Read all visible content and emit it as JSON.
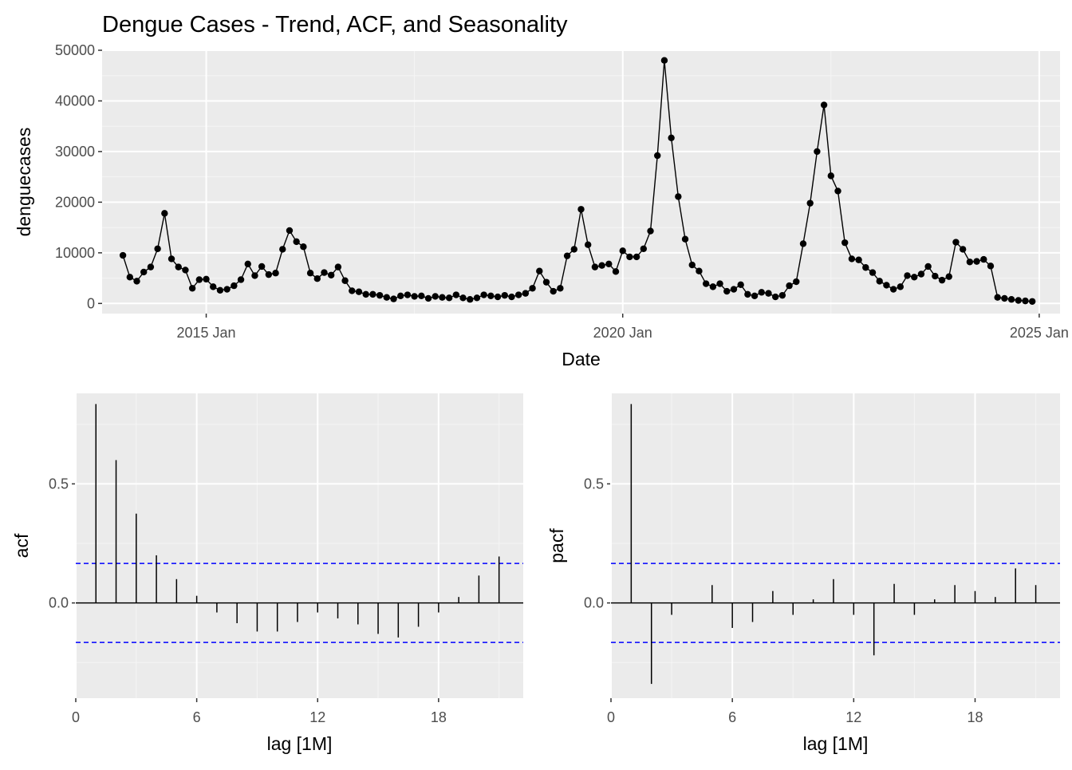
{
  "colors": {
    "panel_bg": "#ebebeb",
    "grid_major": "#ffffff",
    "grid_minor": "#f5f5f5",
    "series": "#000000",
    "confidence": "#0000ff",
    "tick_text": "#4d4d4d"
  },
  "chart_data": [
    {
      "type": "line",
      "title": "Dengue Cases - Trend, ACF, and Seasonality",
      "xlabel": "Date",
      "ylabel": "denguecases",
      "xlim": [
        "2013-10",
        "2025-04"
      ],
      "ylim": [
        -2000,
        50000
      ],
      "x_ticks": [
        {
          "date": "2015-01",
          "label": "2015 Jan"
        },
        {
          "date": "2020-01",
          "label": "2020 Jan"
        },
        {
          "date": "2025-01",
          "label": "2025 Jan"
        }
      ],
      "y_ticks": [
        0,
        10000,
        20000,
        30000,
        40000,
        50000
      ],
      "y_tick_labels": [
        "0",
        "10000",
        "20000",
        "30000",
        "40000",
        "50000"
      ],
      "grid": true,
      "markers": true,
      "start": "2014-01",
      "frequency": "monthly",
      "values": [
        9500,
        5200,
        4400,
        6200,
        7200,
        10800,
        17800,
        8800,
        7200,
        6600,
        3000,
        4700,
        4800,
        3300,
        2600,
        2800,
        3500,
        4700,
        7800,
        5500,
        7300,
        5700,
        6000,
        10700,
        14400,
        12200,
        11200,
        6000,
        4900,
        6100,
        5600,
        7200,
        4500,
        2500,
        2300,
        1800,
        1800,
        1600,
        1200,
        900,
        1500,
        1700,
        1400,
        1500,
        1000,
        1400,
        1200,
        1100,
        1700,
        1100,
        800,
        1100,
        1700,
        1500,
        1300,
        1600,
        1300,
        1700,
        2000,
        3000,
        6400,
        4200,
        2400,
        3000,
        9400,
        10700,
        18600,
        11600,
        7200,
        7500,
        7800,
        6300,
        10400,
        9200,
        9200,
        10800,
        14300,
        29200,
        48000,
        32700,
        21100,
        12700,
        7600,
        6400,
        3900,
        3300,
        3900,
        2400,
        2800,
        3700,
        1800,
        1500,
        2200,
        2000,
        1300,
        1600,
        3500,
        4300,
        11800,
        19800,
        30000,
        39200,
        25200,
        22200,
        12000,
        8800,
        8600,
        7100,
        6100,
        4400,
        3600,
        2800,
        3300,
        5500,
        5200,
        5800,
        7300,
        5400,
        4600,
        5300,
        12100,
        10700,
        8200,
        8300,
        8700,
        7400,
        1200,
        1000,
        800,
        600,
        500,
        400
      ]
    },
    {
      "type": "bar",
      "subtype": "correlogram",
      "xlabel": "lag [1M]",
      "ylabel": "acf",
      "xlim": [
        0,
        22.2
      ],
      "ylim": [
        -0.4,
        0.88
      ],
      "x_ticks": [
        0,
        6,
        12,
        18
      ],
      "x_tick_labels": [
        "0",
        "6",
        "12",
        "18"
      ],
      "y_ticks": [
        0.0,
        0.5
      ],
      "y_tick_labels": [
        "0.0",
        "0.5"
      ],
      "confidence_bound": 0.166,
      "lags": [
        1,
        2,
        3,
        4,
        5,
        6,
        7,
        8,
        9,
        10,
        11,
        12,
        13,
        14,
        15,
        16,
        17,
        18,
        19,
        20,
        21
      ],
      "values": [
        0.835,
        0.6,
        0.375,
        0.2,
        0.1,
        0.03,
        -0.04,
        -0.085,
        -0.12,
        -0.12,
        -0.08,
        -0.04,
        -0.065,
        -0.09,
        -0.13,
        -0.145,
        -0.1,
        -0.04,
        0.025,
        0.115,
        0.195
      ]
    },
    {
      "type": "bar",
      "subtype": "correlogram",
      "xlabel": "lag [1M]",
      "ylabel": "pacf",
      "xlim": [
        0,
        22.2
      ],
      "ylim": [
        -0.4,
        0.88
      ],
      "x_ticks": [
        0,
        6,
        12,
        18
      ],
      "x_tick_labels": [
        "0",
        "6",
        "12",
        "18"
      ],
      "y_ticks": [
        0.0,
        0.5
      ],
      "y_tick_labels": [
        "0.0",
        "0.5"
      ],
      "confidence_bound": 0.166,
      "lags": [
        1,
        2,
        3,
        4,
        5,
        6,
        7,
        8,
        9,
        10,
        11,
        12,
        13,
        14,
        15,
        16,
        17,
        18,
        19,
        20,
        21
      ],
      "values": [
        0.835,
        -0.34,
        -0.05,
        0.0,
        0.075,
        -0.105,
        -0.08,
        0.05,
        -0.05,
        0.015,
        0.1,
        -0.05,
        -0.22,
        0.08,
        -0.05,
        0.015,
        0.075,
        0.05,
        0.025,
        0.145,
        0.075
      ]
    }
  ]
}
